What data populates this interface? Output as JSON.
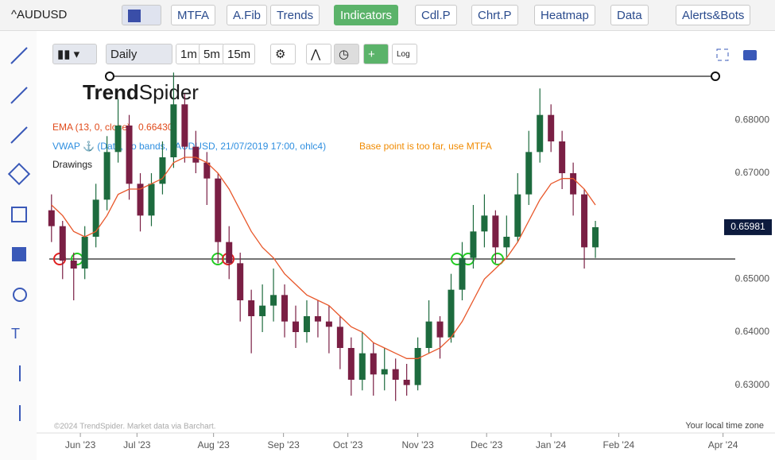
{
  "toolbar": {
    "symbol": "^AUDUSD",
    "buttons": [
      "MTFA",
      "A.Fib",
      "Trends",
      "Indicators",
      "Cdl.P",
      "Chrt.P",
      "Heatmap",
      "Data",
      "Alerts&Bots"
    ]
  },
  "chart_toolbar": {
    "timeframe": "Daily",
    "intervals": [
      "1m",
      "5m",
      "15m"
    ],
    "log": "Log"
  },
  "chart_data": {
    "type": "candlestick",
    "logo": [
      "Trend",
      "Spider"
    ],
    "ema": {
      "name": "EMA (13, 0, close)",
      "value_label": "0.66430",
      "color": "#e8572a",
      "values": [
        0.664,
        0.662,
        0.659,
        0.658,
        0.659,
        0.662,
        0.666,
        0.667,
        0.667,
        0.668,
        0.669,
        0.672,
        0.673,
        0.673,
        0.672,
        0.67,
        0.667,
        0.663,
        0.659,
        0.656,
        0.654,
        0.651,
        0.649,
        0.647,
        0.646,
        0.645,
        0.643,
        0.641,
        0.64,
        0.638,
        0.637,
        0.636,
        0.635,
        0.635,
        0.636,
        0.637,
        0.639,
        0.642,
        0.646,
        0.65,
        0.652,
        0.654,
        0.657,
        0.661,
        0.665,
        0.668,
        0.669,
        0.669,
        0.667,
        0.664
      ]
    },
    "vwap_label": "VWAP ⚓ (Data, no bands, ^AUDUSD, 21/07/2019 17:00, ohlc4)",
    "vwap_color": "#2f8fe0",
    "warning": "Base point is too far, use MTFA",
    "drawings_label": "Drawings",
    "up_color": "#1d6b3e",
    "down_color": "#7a1f44",
    "categories": [
      null,
      null,
      null,
      null,
      null,
      null,
      null,
      null,
      null,
      null,
      null,
      null,
      null,
      null,
      null,
      null,
      null,
      null,
      null,
      null,
      null,
      null,
      null,
      null,
      null,
      null,
      null,
      null,
      null,
      null,
      null,
      null,
      null,
      null,
      null,
      null,
      null,
      null,
      null,
      null,
      null,
      null,
      null,
      null,
      null,
      null,
      null,
      null,
      null,
      null
    ],
    "open": [
      0.663,
      0.66,
      0.6535,
      0.652,
      0.658,
      0.665,
      0.674,
      0.679,
      0.668,
      0.662,
      0.668,
      0.673,
      0.683,
      0.675,
      0.672,
      0.669,
      0.657,
      0.653,
      0.646,
      0.643,
      0.645,
      0.647,
      0.642,
      0.64,
      0.643,
      0.642,
      0.641,
      0.637,
      0.631,
      0.636,
      0.632,
      0.633,
      0.631,
      0.63,
      0.637,
      0.642,
      0.639,
      0.648,
      0.654,
      0.659,
      0.662,
      0.656,
      0.658,
      0.666,
      0.674,
      0.681,
      0.676,
      0.67,
      0.666,
      0.656
    ],
    "high": [
      0.666,
      0.661,
      0.655,
      0.66,
      0.668,
      0.677,
      0.684,
      0.681,
      0.67,
      0.67,
      0.676,
      0.689,
      0.685,
      0.678,
      0.674,
      0.67,
      0.66,
      0.655,
      0.648,
      0.649,
      0.652,
      0.649,
      0.645,
      0.646,
      0.646,
      0.645,
      0.643,
      0.639,
      0.64,
      0.638,
      0.637,
      0.635,
      0.634,
      0.639,
      0.646,
      0.643,
      0.651,
      0.657,
      0.664,
      0.666,
      0.663,
      0.662,
      0.67,
      0.678,
      0.686,
      0.683,
      0.678,
      0.672,
      0.667,
      0.661
    ],
    "low": [
      0.657,
      0.65,
      0.646,
      0.65,
      0.656,
      0.663,
      0.672,
      0.665,
      0.659,
      0.66,
      0.666,
      0.671,
      0.672,
      0.67,
      0.664,
      0.653,
      0.65,
      0.642,
      0.636,
      0.64,
      0.642,
      0.639,
      0.637,
      0.638,
      0.639,
      0.636,
      0.633,
      0.628,
      0.629,
      0.628,
      0.629,
      0.627,
      0.628,
      0.629,
      0.636,
      0.635,
      0.638,
      0.646,
      0.652,
      0.656,
      0.653,
      0.654,
      0.657,
      0.664,
      0.672,
      0.674,
      0.667,
      0.662,
      0.652,
      0.654
    ],
    "close": [
      0.66,
      0.6535,
      0.652,
      0.658,
      0.665,
      0.674,
      0.679,
      0.668,
      0.662,
      0.668,
      0.673,
      0.683,
      0.675,
      0.672,
      0.669,
      0.657,
      0.653,
      0.646,
      0.643,
      0.645,
      0.647,
      0.642,
      0.64,
      0.643,
      0.642,
      0.641,
      0.637,
      0.631,
      0.636,
      0.632,
      0.633,
      0.631,
      0.63,
      0.637,
      0.642,
      0.639,
      0.648,
      0.654,
      0.659,
      0.662,
      0.656,
      0.658,
      0.666,
      0.674,
      0.681,
      0.676,
      0.67,
      0.666,
      0.656,
      0.6598
    ],
    "support_line": 0.6538,
    "resistance_line": 0.6883,
    "last_price": 0.65981,
    "xlim": [
      -0.2,
      61.6
    ],
    "ylim": [
      0.6217,
      0.6892
    ],
    "grid": false,
    "xticks": [
      {
        "value": 2.6,
        "label": "Jun '23"
      },
      {
        "value": 7.7,
        "label": "Jul '23"
      },
      {
        "value": 14.6,
        "label": "Aug '23"
      },
      {
        "value": 20.9,
        "label": "Sep '23"
      },
      {
        "value": 26.7,
        "label": "Oct '23"
      },
      {
        "value": 33,
        "label": "Nov '23"
      },
      {
        "value": 39.2,
        "label": "Dec '23"
      },
      {
        "value": 45,
        "label": "Jan '24"
      },
      {
        "value": 51.1,
        "label": "Feb '24"
      },
      {
        "value": 60.5,
        "label": "Apr '24"
      }
    ],
    "yticks": [
      {
        "value": 0.63,
        "label": "0.63000"
      },
      {
        "value": 0.64,
        "label": "0.64000"
      },
      {
        "value": 0.65,
        "label": "0.65000"
      },
      {
        "value": 0.67,
        "label": "0.67000"
      },
      {
        "value": 0.68,
        "label": "0.68000"
      }
    ],
    "copyright": "©2024 TrendSpider. Market data via Barchart.",
    "timezone": "Your local time zone"
  }
}
